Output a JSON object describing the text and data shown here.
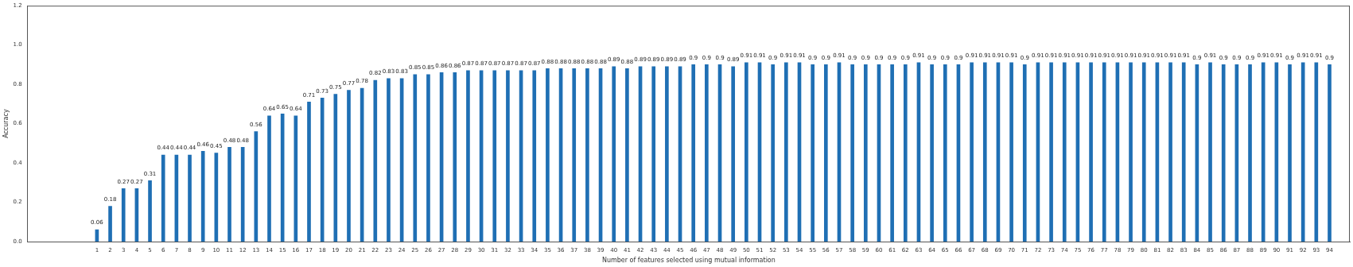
{
  "chart_data": {
    "type": "bar",
    "xlabel": "Number of features selected using mutual information",
    "ylabel": "Accuracy",
    "x": [
      1,
      2,
      3,
      4,
      5,
      6,
      7,
      8,
      9,
      10,
      11,
      12,
      13,
      14,
      15,
      16,
      17,
      18,
      19,
      20,
      21,
      22,
      23,
      24,
      25,
      26,
      27,
      28,
      29,
      30,
      31,
      32,
      33,
      34,
      35,
      36,
      37,
      38,
      39,
      40,
      41,
      42,
      43,
      44,
      45,
      46,
      47,
      48,
      49,
      50,
      51,
      52,
      53,
      54,
      55,
      56,
      57,
      58,
      59,
      60,
      61,
      62,
      63,
      64,
      65,
      66,
      67,
      68,
      69,
      70,
      71,
      72,
      73,
      74,
      75,
      76,
      77,
      78,
      79,
      80,
      81,
      82,
      83,
      84,
      85,
      86,
      87,
      88,
      89,
      90,
      91,
      92,
      93,
      94
    ],
    "values": [
      0.06,
      0.18,
      0.27,
      0.27,
      0.31,
      0.44,
      0.44,
      0.44,
      0.46,
      0.45,
      0.48,
      0.48,
      0.56,
      0.64,
      0.65,
      0.64,
      0.71,
      0.73,
      0.75,
      0.77,
      0.78,
      0.82,
      0.83,
      0.83,
      0.85,
      0.85,
      0.86,
      0.86,
      0.87,
      0.87,
      0.87,
      0.87,
      0.87,
      0.87,
      0.88,
      0.88,
      0.88,
      0.88,
      0.88,
      0.89,
      0.88,
      0.89,
      0.89,
      0.89,
      0.89,
      0.9,
      0.9,
      0.9,
      0.89,
      0.91,
      0.91,
      0.9,
      0.91,
      0.91,
      0.9,
      0.9,
      0.91,
      0.9,
      0.9,
      0.9,
      0.9,
      0.9,
      0.91,
      0.9,
      0.9,
      0.9,
      0.91,
      0.91,
      0.91,
      0.91,
      0.9,
      0.91,
      0.91,
      0.91,
      0.91,
      0.91,
      0.91,
      0.91,
      0.91,
      0.91,
      0.91,
      0.91,
      0.91,
      0.9,
      0.91,
      0.9,
      0.9,
      0.9,
      0.91,
      0.91,
      0.9,
      0.91,
      0.91,
      0.9
    ],
    "color": "#1f6fb4",
    "data_labels": true,
    "grid": false,
    "legend": false,
    "xlim": [
      -3.7,
      95
    ],
    "xticks": [
      1,
      2,
      3,
      4,
      5,
      6,
      7,
      8,
      9,
      10,
      11,
      12,
      13,
      14,
      15,
      16,
      17,
      18,
      19,
      20,
      21,
      22,
      23,
      24,
      25,
      26,
      27,
      28,
      29,
      30,
      31,
      32,
      33,
      34,
      35,
      36,
      37,
      38,
      39,
      40,
      41,
      42,
      43,
      44,
      45,
      46,
      47,
      48,
      49,
      50,
      51,
      52,
      53,
      54,
      55,
      56,
      57,
      58,
      59,
      60,
      61,
      62,
      63,
      64,
      65,
      66,
      67,
      68,
      69,
      70,
      71,
      72,
      73,
      74,
      75,
      76,
      77,
      78,
      79,
      80,
      81,
      82,
      83,
      84,
      85,
      86,
      87,
      88,
      89,
      90,
      91,
      92,
      93,
      94
    ],
    "ylim": [
      0,
      1.2
    ],
    "yticks": [
      {
        "value": 0,
        "label": "0.0"
      },
      {
        "value": 0.2,
        "label": "0.2"
      },
      {
        "value": 0.4,
        "label": "0.4"
      },
      {
        "value": 0.6,
        "label": "0.6"
      },
      {
        "value": 0.8,
        "label": "0.8"
      },
      {
        "value": 1,
        "label": "1.0"
      },
      {
        "value": 1.2,
        "label": "1.2"
      }
    ]
  }
}
